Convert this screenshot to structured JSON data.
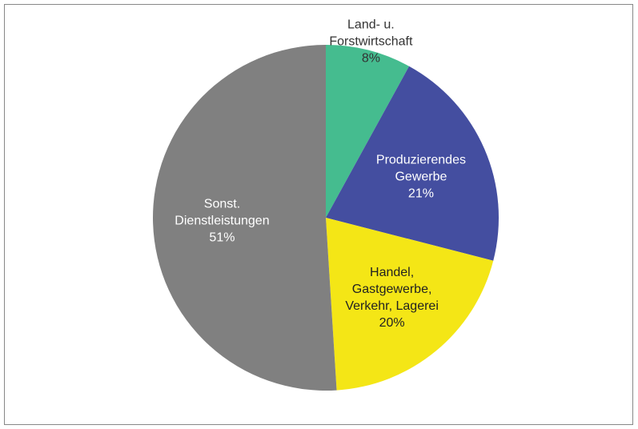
{
  "chart_data": {
    "type": "pie",
    "categories": [
      "Land- u.\nForstwirtschaft",
      "Produzierendes\nGewerbe",
      "Handel,\nGastgewerbe,\nVerkehr, Lagerei",
      "Sonst.\nDienstleistungen"
    ],
    "values": [
      8,
      21,
      20,
      51
    ],
    "value_labels": [
      "8%",
      "21%",
      "20%",
      "51%"
    ],
    "colors": [
      "#45bc8f",
      "#444ea0",
      "#f4e616",
      "#808080"
    ]
  }
}
